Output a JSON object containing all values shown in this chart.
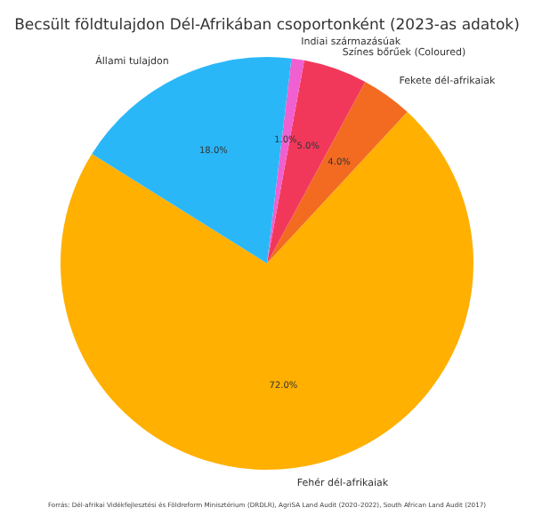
{
  "chart_data": {
    "type": "pie",
    "title": "Becsült földtulajdon Dél-Afrikában csoportonként (2023-as adatok)",
    "categories": [
      "Fehér dél-afrikaiak",
      "Fekete dél-afrikaiak",
      "Színes bőrűek (Coloured)",
      "Indiai származásúak",
      "Állami tulajdon"
    ],
    "values": [
      72.0,
      4.0,
      5.0,
      1.0,
      18.0
    ],
    "value_labels": [
      "72.0%",
      "4.0%",
      "5.0%",
      "1.0%",
      "18.0%"
    ],
    "colors": [
      "#ffb000",
      "#f26b21",
      "#f2385a",
      "#f060d0",
      "#2ab7f8"
    ],
    "annotations": [
      "Forrás: Dél-afrikai Vidékfejlesztési és Földreform Minisztérium (DRDLR), AgriSA Land Audit (2020–2022), South African Land Audit (2017)"
    ],
    "legend": false
  }
}
